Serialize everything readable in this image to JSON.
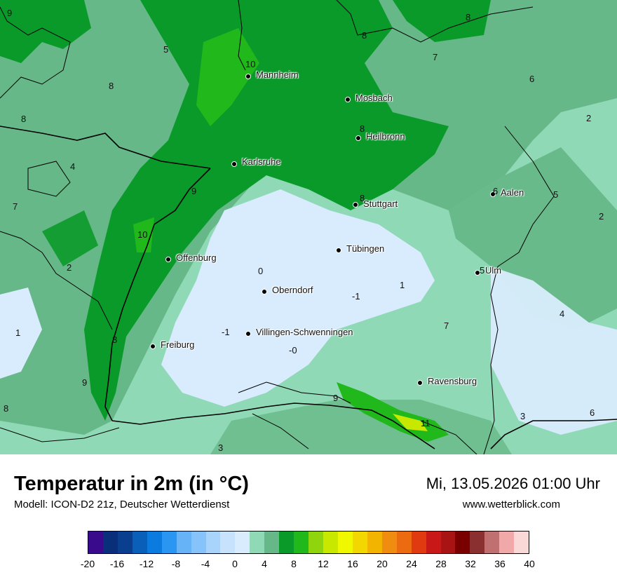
{
  "map": {
    "cities": [
      {
        "name": "Mannheim",
        "key": "mannheim"
      },
      {
        "name": "Mosbach",
        "key": "mosbach"
      },
      {
        "name": "Heilbronn",
        "key": "heilbronn"
      },
      {
        "name": "Karlsruhe",
        "key": "karlsruhe"
      },
      {
        "name": "Aalen",
        "key": "aalen"
      },
      {
        "name": "Stuttgart",
        "key": "stuttgart"
      },
      {
        "name": "Tübingen",
        "key": "tuebingen"
      },
      {
        "name": "Offenburg",
        "key": "offenburg"
      },
      {
        "name": "Ulm",
        "key": "ulm"
      },
      {
        "name": "Oberndorf",
        "key": "oberndorf"
      },
      {
        "name": "Villingen-Schwenningen",
        "key": "villingen"
      },
      {
        "name": "Freiburg",
        "key": "freiburg"
      },
      {
        "name": "Ravensburg",
        "key": "ravensburg"
      }
    ],
    "values": [
      "9",
      "5",
      "8",
      "8",
      "10",
      "8",
      "7",
      "6",
      "2",
      "8",
      "4",
      "7",
      "9",
      "8",
      "6",
      "5",
      "2",
      "10",
      "8",
      "2",
      "0",
      "1",
      "-1",
      "5",
      "1",
      "-1",
      "4",
      "8",
      "-0",
      "9",
      "9",
      "8",
      "3",
      "6",
      "11",
      "3",
      "7"
    ]
  },
  "footer": {
    "title": "Temperatur in 2m (in °C)",
    "model": "Modell: ICON-D2 21z, Deutscher Wetterdienst",
    "datetime": "Mi, 13.05.2026 01:00 Uhr",
    "website": "www.wetterblick.com"
  },
  "legend": {
    "colors": [
      "#3a0a8c",
      "#0a2f7a",
      "#0a3f8f",
      "#0a5fb8",
      "#0b7be0",
      "#2b95f2",
      "#66b3f8",
      "#86c3fa",
      "#a8d4fb",
      "#c6e2fc",
      "#d9ecfd",
      "#8fd9b6",
      "#66b888",
      "#0a9a2a",
      "#21b81c",
      "#8fd40c",
      "#c8e800",
      "#f0f800",
      "#f2d800",
      "#f2b400",
      "#f08c10",
      "#ec6a10",
      "#e03a10",
      "#c81818",
      "#a81414",
      "#7a0000",
      "#8a3030",
      "#c07070",
      "#f0a8a8",
      "#fbd8d8"
    ],
    "ticks": [
      "-20",
      "-16",
      "-12",
      "-8",
      "-4",
      "0",
      "4",
      "8",
      "12",
      "16",
      "20",
      "24",
      "28",
      "32",
      "36",
      "40"
    ]
  }
}
